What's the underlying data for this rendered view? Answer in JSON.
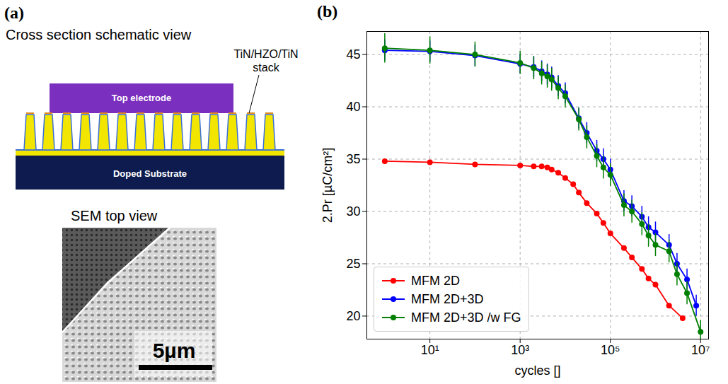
{
  "diagram": {
    "panel_label": "(a)",
    "schematic": {
      "title": "Cross section schematic view",
      "electrode": "Top electrode",
      "substrate": "Doped Substrate",
      "callout": "TiN/HZO/TiN stack"
    },
    "sem": {
      "title": "SEM top view",
      "scale_bar": "5µm"
    }
  },
  "chart_data": {
    "type": "line",
    "panel_label": "(b)",
    "x_label": "cycles []",
    "y_label": "2.Pr [µC/cm²]",
    "log": "x",
    "grid": true,
    "legend": "lower left",
    "marker": "o",
    "xlim": [
      0.4,
      15000000
    ],
    "xticks": [
      {
        "value": 10,
        "label": "10¹"
      },
      {
        "value": 1000,
        "label": "10³"
      },
      {
        "value": 100000,
        "label": "10⁵"
      },
      {
        "value": 10000000,
        "label": "10⁷"
      }
    ],
    "ylim": [
      17.8,
      47.2
    ],
    "yticks": [
      20,
      25,
      30,
      35,
      40,
      45
    ],
    "series": [
      {
        "name": "MFM 2D",
        "color": "#ff0000",
        "x": [
          1,
          10,
          100,
          1000,
          2000,
          3000,
          4000,
          5000,
          7000,
          10000,
          15000,
          20000,
          30000,
          50000,
          70000,
          100000,
          200000,
          300000,
          500000,
          700000,
          1000000,
          2000000,
          4000000
        ],
        "values": [
          34.8,
          34.7,
          34.5,
          34.4,
          34.3,
          34.3,
          34.2,
          34.0,
          33.7,
          33.2,
          32.6,
          31.8,
          30.8,
          29.8,
          28.9,
          27.9,
          26.5,
          25.6,
          24.5,
          23.6,
          23.0,
          21.0,
          19.8
        ]
      },
      {
        "name": "MFM 2D+3D",
        "color": "#0000ff",
        "x": [
          1,
          10,
          100,
          1000,
          2000,
          3000,
          4000,
          5000,
          7000,
          10000,
          20000,
          30000,
          50000,
          70000,
          100000,
          200000,
          300000,
          500000,
          700000,
          1000000,
          2000000,
          3000000,
          5000000,
          8000000
        ],
        "values": [
          45.4,
          45.3,
          44.9,
          44.1,
          43.8,
          43.4,
          43.1,
          42.8,
          42.0,
          41.3,
          38.9,
          37.5,
          35.8,
          35.0,
          34.0,
          31.0,
          30.5,
          29.5,
          28.5,
          28.0,
          26.8,
          25.0,
          23.5,
          21.0
        ],
        "errors": [
          1.0,
          1.0,
          1.0,
          0.9,
          1.0,
          1.0,
          1.0,
          1.0,
          1.0,
          1.0,
          1.0,
          1.0,
          1.0,
          1.0,
          1.0,
          1.0,
          1.0,
          1.0,
          1.0,
          1.0,
          1.0,
          1.0,
          1.0,
          1.0
        ]
      },
      {
        "name": "MFM 2D+3D /w FG",
        "color": "#008000",
        "x": [
          1,
          10,
          100,
          1000,
          2000,
          3000,
          4000,
          5000,
          7000,
          10000,
          20000,
          30000,
          50000,
          70000,
          100000,
          200000,
          300000,
          500000,
          700000,
          1000000,
          2000000,
          3000000,
          5000000,
          10000000
        ],
        "values": [
          45.6,
          45.4,
          45.0,
          44.2,
          43.7,
          43.2,
          42.9,
          42.6,
          41.8,
          41.0,
          38.8,
          37.1,
          35.3,
          34.2,
          33.5,
          30.6,
          30.0,
          28.8,
          27.7,
          26.8,
          26.2,
          24.0,
          22.2,
          18.5
        ],
        "errors": [
          1.4,
          1.3,
          1.2,
          1.1,
          1.1,
          1.1,
          1.1,
          1.1,
          1.1,
          1.1,
          1.1,
          1.1,
          1.1,
          1.1,
          1.1,
          1.1,
          1.1,
          1.1,
          1.1,
          1.1,
          1.1,
          1.1,
          1.1,
          1.1
        ]
      }
    ]
  }
}
